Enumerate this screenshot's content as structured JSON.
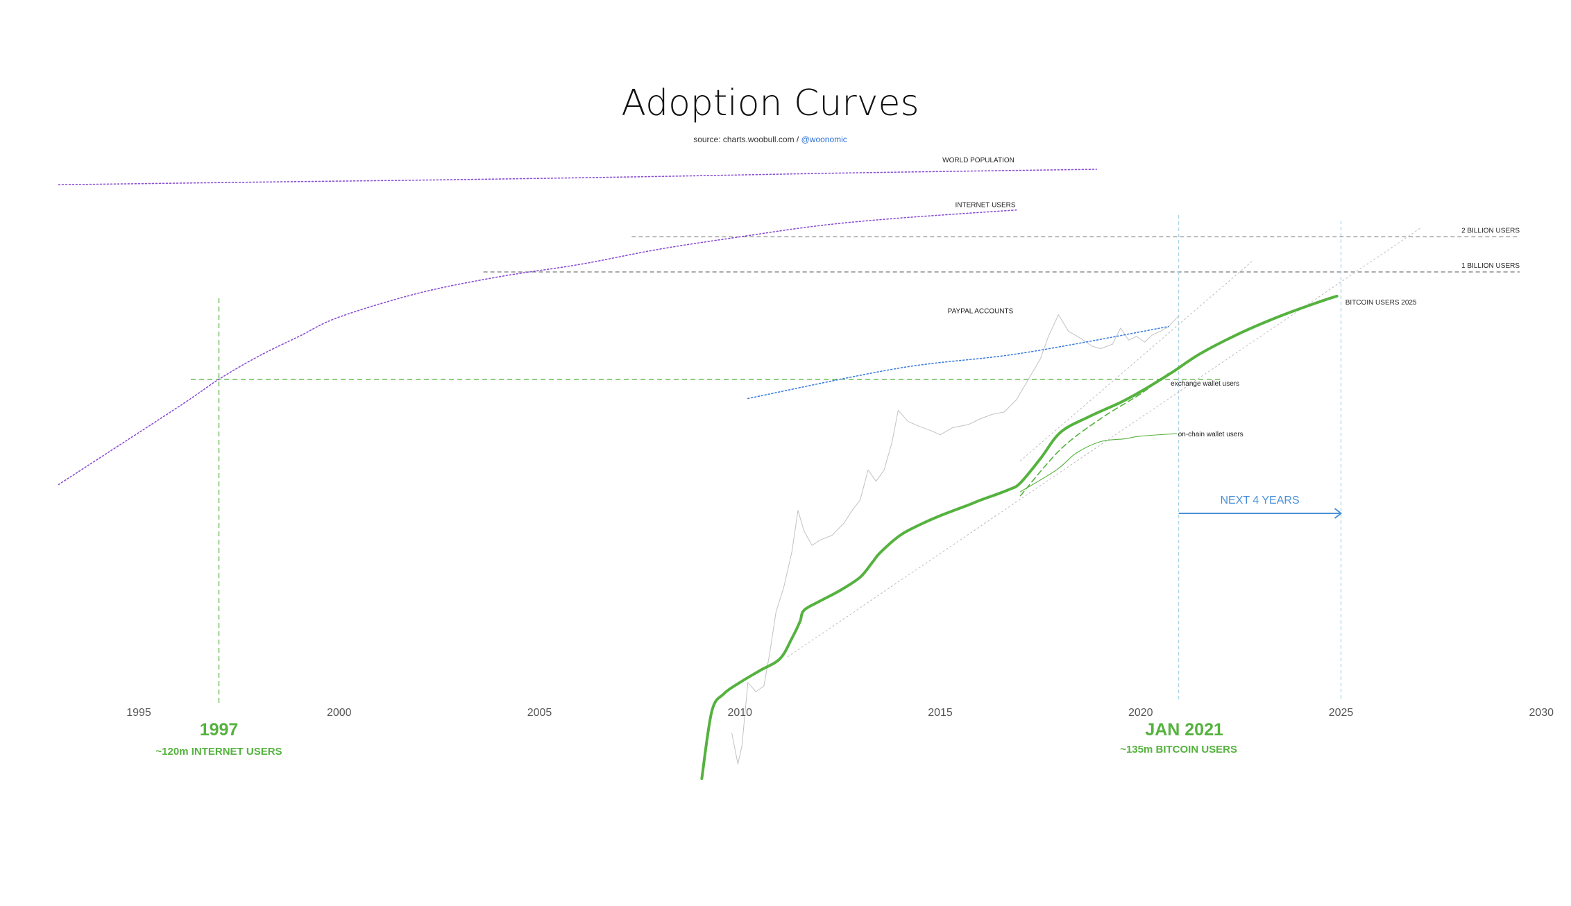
{
  "page_title": "Adoption Curves",
  "source": {
    "text": "source: charts.woobull.com / ",
    "handle": "@woonomic"
  },
  "colors": {
    "bitcoin": "#55b23f",
    "purple": "#8a4fd3",
    "paypal": "#3f7fde",
    "blue_annot": "#4a90d9",
    "price": "#c2c2c2",
    "reference": "#777777",
    "guide_blue": "#a9d3e6"
  },
  "chart_data": {
    "type": "line",
    "y_scale": "log (users)",
    "xlim": [
      1993,
      2030
    ],
    "x_ticks": [
      {
        "label": "1995",
        "value": 1995
      },
      {
        "label": "2000",
        "value": 2000
      },
      {
        "label": "2005",
        "value": 2005
      },
      {
        "label": "2010",
        "value": 2010
      },
      {
        "label": "2015",
        "value": 2015
      },
      {
        "label": "2020",
        "value": 2020
      },
      {
        "label": "2025",
        "value": 2025
      },
      {
        "label": "2030",
        "value": 2030
      }
    ],
    "series": [
      {
        "name": "WORLD POPULATION",
        "style": "dotted",
        "x": [
          1993,
          1998,
          2003,
          2008,
          2013,
          2018.9
        ],
        "y": [
          5600000000.0,
          5900000000.0,
          6200000000.0,
          6600000000.0,
          7100000000.0,
          7600000000.0
        ]
      },
      {
        "name": "INTERNET USERS",
        "style": "dotted",
        "x": [
          1993,
          1996,
          1997,
          1998,
          1999,
          2000,
          2002,
          2004,
          2006,
          2008,
          2010,
          2012,
          2014,
          2016.9
        ],
        "y": [
          15000000.0,
          70000000.0,
          120000000.0,
          190000000.0,
          280000000.0,
          410000000.0,
          660000000.0,
          910000000.0,
          1160000000.0,
          1570000000.0,
          2000000000.0,
          2500000000.0,
          2900000000.0,
          3400000000.0
        ]
      },
      {
        "name": "PAYPAL ACCOUNTS",
        "style": "dotted",
        "x": [
          2010.2,
          2014,
          2017,
          2020.7
        ],
        "y": [
          82000000.0,
          150000000.0,
          200000000.0,
          340000000.0
        ]
      },
      {
        "name": "exchange wallet users",
        "style": "dashed",
        "x": [
          2017,
          2018,
          2019,
          2020,
          2020.7
        ],
        "y": [
          12000000.0,
          30000000.0,
          55000000.0,
          90000000.0,
          135000000.0
        ]
      },
      {
        "name": "on-chain wallet users",
        "style": "solid",
        "x": [
          2017,
          2017.9,
          2018.4,
          2019,
          2019.6,
          2020,
          2020.9
        ],
        "y": [
          13000000.0,
          20000000.0,
          28000000.0,
          35000000.0,
          37000000.0,
          39000000.0,
          41000000.0
        ]
      },
      {
        "name": "BITCOIN USERS 2025",
        "style": "bold",
        "x": [
          2009.05,
          2009.3,
          2009.6,
          2010,
          2010.5,
          2011,
          2011.3,
          2011.5,
          2011.6,
          2012,
          2012.5,
          2013,
          2013.3,
          2013.5,
          2014,
          2014.5,
          2015,
          2015.7,
          2016,
          2016.7,
          2017,
          2017.5,
          2018,
          2018.7,
          2019.5,
          2020,
          2020.75,
          2021.5,
          2022.5,
          2023.5,
          2024.5,
          2024.9
        ],
        "y": [
          45000.0,
          170000.0,
          240000.0,
          300000.0,
          380000.0,
          480000.0,
          720000.0,
          1000000.0,
          1250000.0,
          1500000.0,
          1850000.0,
          2400000.0,
          3200000.0,
          3900000.0,
          5500000.0,
          6800000.0,
          8100000.0,
          10000000.0,
          11000000.0,
          13500000.0,
          15500000.0,
          25000000.0,
          42000000.0,
          57000000.0,
          76000000.0,
          94000000.0,
          135000000.0,
          200000000.0,
          300000000.0,
          420000000.0,
          560000000.0,
          620000000.0
        ]
      },
      {
        "name": "",
        "style": "price",
        "x": [
          2009.8,
          2009.95,
          2010.05,
          2010.2,
          2010.4,
          2010.6,
          2010.75,
          2010.9,
          2011.1,
          2011.3,
          2011.45,
          2011.6,
          2011.8,
          2012,
          2012.3,
          2012.6,
          2012.8,
          2013,
          2013.2,
          2013.4,
          2013.6,
          2013.8,
          2013.95,
          2014.2,
          2014.5,
          2014.8,
          2015,
          2015.3,
          2015.7,
          2016,
          2016.3,
          2016.6,
          2016.9,
          2017.2,
          2017.5,
          2017.7,
          2017.95,
          2018.2,
          2018.5,
          2018.8,
          2019,
          2019.3,
          2019.5,
          2019.7,
          2019.9,
          2020.1,
          2020.3,
          2020.5,
          2020.7,
          2020.95
        ],
        "y": [
          110000.0,
          60000.0,
          85000.0,
          300000.0,
          250000.0,
          280000.0,
          550000.0,
          1200000.0,
          2000000.0,
          4000000.0,
          9000000.0,
          6000000.0,
          4500000.0,
          5000000.0,
          5500000.0,
          7000000.0,
          9000000.0,
          11000000.0,
          20000000.0,
          16000000.0,
          20000000.0,
          35000000.0,
          65000000.0,
          52000000.0,
          47000000.0,
          43000000.0,
          40000000.0,
          46000000.0,
          49000000.0,
          55000000.0,
          60000000.0,
          63000000.0,
          80000000.0,
          120000000.0,
          180000000.0,
          280000000.0,
          430000000.0,
          310000000.0,
          270000000.0,
          230000000.0,
          220000000.0,
          240000000.0,
          330000000.0,
          260000000.0,
          280000000.0,
          250000000.0,
          290000000.0,
          310000000.0,
          340000000.0,
          420000000.0
        ]
      },
      {
        "name": "",
        "style": "trend",
        "x": [
          2011.2,
          2027
        ],
        "y": [
          500000.0,
          2400000000.0
        ]
      },
      {
        "name": "",
        "style": "trend",
        "x": [
          2017,
          2022.8
        ],
        "y": [
          24000000.0,
          1250000000.0
        ]
      }
    ],
    "reference_lines": [
      {
        "label": "2 BILLION USERS",
        "y": 2000000000.0,
        "x_start": 2007.3
      },
      {
        "label": "1 BILLION USERS",
        "y": 1000000000.0,
        "x_start": 2003.6
      }
    ],
    "green_reference": {
      "y": 120000000.0,
      "x": 1997,
      "x_range": [
        1996.3,
        2022
      ]
    },
    "vertical_markers": [
      {
        "x": 2020.95,
        "label": "JAN 2021",
        "sub": "~135m BITCOIN USERS"
      },
      {
        "x": 2025
      }
    ],
    "green_marker": {
      "x": 1997,
      "label": "1997",
      "sub": "~120m INTERNET USERS"
    },
    "arrow": {
      "from": 2020.95,
      "to": 2025,
      "label": "NEXT 4 YEARS"
    }
  }
}
